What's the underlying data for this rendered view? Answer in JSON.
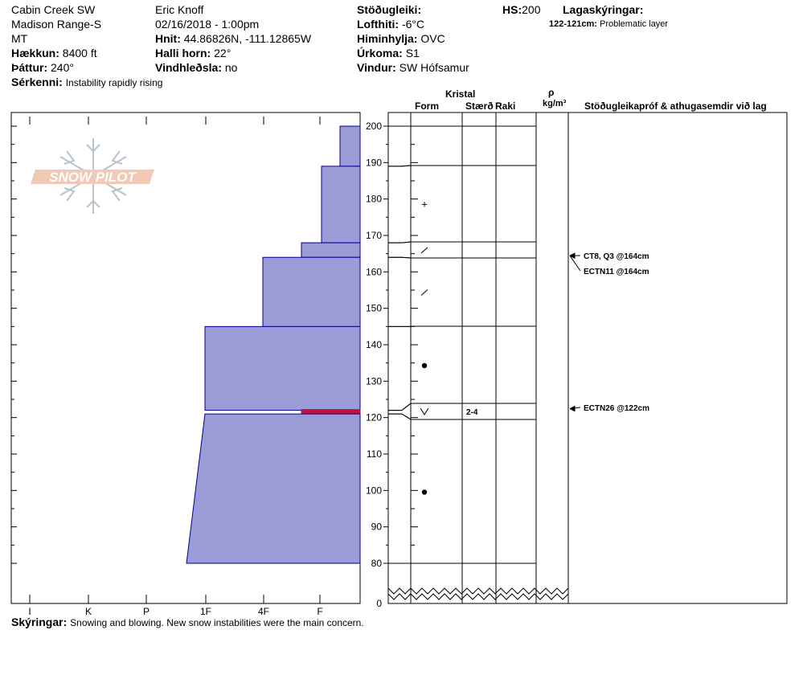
{
  "header": {
    "location": "Cabin Creek SW",
    "range": "Madison Range-S",
    "state": "MT",
    "elevation_label": "Hækkun:",
    "elevation_value": "8400 ft",
    "aspect_label": "Þáttur:",
    "aspect_value": "240°",
    "features_label": "Sérkenni:",
    "features_value": "Instability rapidly rising",
    "observer": "Eric Knoff",
    "datetime": "02/16/2018 - 1:00pm",
    "coords_label": "Hnit:",
    "coords_value": "44.86826N, -111.12865W",
    "slope_label": "Halli horn:",
    "slope_value": "22°",
    "wind_loading_label": "Vindhleðsla:",
    "wind_loading_value": "no",
    "stability_label": "Stöðugleiki:",
    "stability_value": "",
    "air_temp_label": "Lofthiti:",
    "air_temp_value": "-6°C",
    "sky_label": "Himinhylja:",
    "sky_value": "OVC",
    "precip_label": "Úrkoma:",
    "precip_value": "S1",
    "wind_label": "Vindur:",
    "wind_value": "SW Hófsamur",
    "hs_label": "HS:",
    "hs_value": "200",
    "legend_label": "Lagaskýringar:",
    "legend_layer_label": "122-121cm:",
    "legend_layer_value": "Problematic layer"
  },
  "logo_text": "SNOW PILOT",
  "columns": {
    "crystal": "Kristal",
    "form": "Form",
    "size": "Stærð",
    "moisture": "Raki",
    "rho": "ρ",
    "density_unit": "kg/m³",
    "tests": "Stöðugleikapróf & athugasemdir við lag"
  },
  "footer": {
    "notes_label": "Skýringar:",
    "notes_value": "Snowing and blowing. New snow instabilities were the main concern."
  },
  "colors": {
    "layer_fill": "#9b9bd8",
    "layer_stroke": "#00008b",
    "problem_layer": "#c0143c"
  },
  "chart_data": {
    "type": "bar",
    "hardness_ticks": [
      "I",
      "K",
      "P",
      "1F",
      "4F",
      "F"
    ],
    "height_ticks": [
      200,
      190,
      180,
      170,
      160,
      150,
      140,
      130,
      120,
      110,
      100,
      90,
      80,
      0
    ],
    "height_unit": "cm",
    "layers": [
      {
        "top": 200,
        "bottom": 189,
        "hardness_top": "F+",
        "hardness_bottom": "F+",
        "form": "",
        "size": ""
      },
      {
        "top": 189,
        "bottom": 168,
        "hardness_top": "F",
        "hardness_bottom": "F",
        "form": "+",
        "size": ""
      },
      {
        "top": 168,
        "bottom": 164,
        "hardness_top": "F-",
        "hardness_bottom": "F-",
        "form": "/",
        "size": ""
      },
      {
        "top": 164,
        "bottom": 145,
        "hardness_top": "4F",
        "hardness_bottom": "4F",
        "form": "/",
        "size": ""
      },
      {
        "top": 145,
        "bottom": 122,
        "hardness_top": "1F",
        "hardness_bottom": "1F",
        "form": "●",
        "size": ""
      },
      {
        "top": 122,
        "bottom": 121,
        "hardness_top": "F-",
        "hardness_bottom": "F-",
        "form": "V",
        "size": "2-4",
        "problematic": true
      },
      {
        "top": 121,
        "bottom": 80,
        "hardness_top": "1F",
        "hardness_bottom": "1F-",
        "form": "●",
        "size": ""
      }
    ],
    "tests": [
      {
        "depth": 164,
        "label": "CT8, Q3 @164cm"
      },
      {
        "depth": 164,
        "label": "ECTN11 @164cm"
      },
      {
        "depth": 122,
        "label": "ECTN26 @122cm"
      }
    ]
  }
}
